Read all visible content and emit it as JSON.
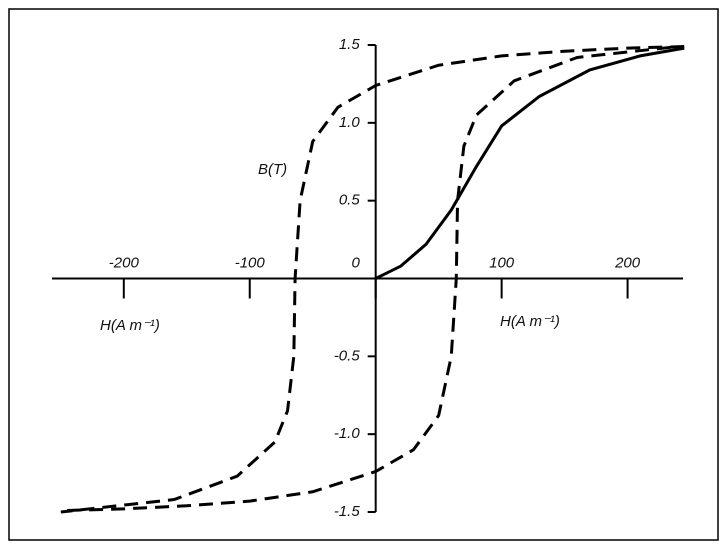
{
  "chart_data": {
    "type": "line",
    "x_label": "H(A m⁻¹)",
    "y_label": "B(T)",
    "xlim": [
      -257,
      244
    ],
    "ylim": [
      -1.5,
      1.5
    ],
    "xticks": [
      -200,
      -100,
      0,
      100,
      200
    ],
    "yticks": [
      1.5,
      {
        "value": 1,
        "label": "1.0"
      },
      0.5,
      -0.5,
      {
        "value": -1,
        "label": "-1.0"
      },
      -1.5
    ],
    "series": [
      {
        "color": "#000000",
        "dashed": false,
        "x": [
          0,
          20,
          40,
          60,
          80,
          100,
          130,
          170,
          210,
          245
        ],
        "values": [
          0,
          0.08,
          0.22,
          0.44,
          0.72,
          0.98,
          1.17,
          1.34,
          1.43,
          1.48
        ]
      },
      {
        "color": "#000000",
        "dashed": true,
        "x": [
          245,
          200,
          150,
          100,
          50,
          0,
          -30,
          -50,
          -60,
          -64,
          -65,
          -70,
          -80,
          -110,
          -160,
          -250
        ],
        "values": [
          1.49,
          1.48,
          1.46,
          1.43,
          1.37,
          1.24,
          1.1,
          0.88,
          0.5,
          0,
          -0.5,
          -0.85,
          -1.05,
          -1.27,
          -1.42,
          -1.5
        ]
      },
      {
        "color": "#000000",
        "dashed": true,
        "x": [
          -245,
          -200,
          -150,
          -100,
          -50,
          0,
          30,
          50,
          60,
          64,
          65,
          70,
          80,
          110,
          160,
          240
        ],
        "values": [
          -1.49,
          -1.48,
          -1.46,
          -1.43,
          -1.37,
          -1.24,
          -1.1,
          -0.88,
          -0.5,
          0,
          0.5,
          0.85,
          1.05,
          1.27,
          1.42,
          1.49
        ]
      }
    ]
  }
}
